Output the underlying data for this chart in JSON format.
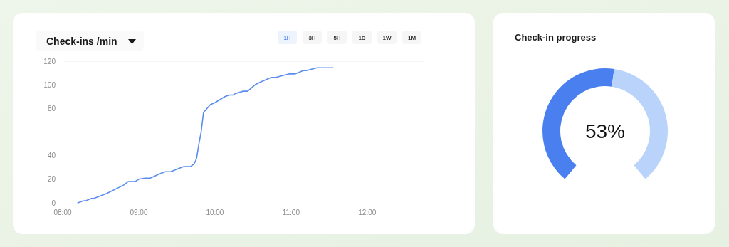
{
  "chart_data": [
    {
      "type": "line",
      "title": "Check-ins /min",
      "annotations": [
        "1H",
        "3H",
        "5H",
        "1D",
        "1W",
        "1M"
      ],
      "x": [
        8.2,
        8.27,
        8.31,
        8.38,
        8.41,
        8.58,
        8.8,
        8.86,
        8.95,
        9.0,
        9.08,
        9.15,
        9.29,
        9.35,
        9.42,
        9.54,
        9.59,
        9.68,
        9.73,
        9.76,
        9.79,
        9.82,
        9.85,
        9.94,
        10.0,
        10.13,
        10.19,
        10.24,
        10.27,
        10.37,
        10.43,
        10.47,
        10.54,
        10.61,
        10.74,
        10.8,
        10.97,
        11.05,
        11.16,
        11.2,
        11.34,
        11.55
      ],
      "series": [
        {
          "color": "#5b8def",
          "values": [
            0,
            1.7,
            2,
            3.7,
            3.7,
            8,
            15,
            18,
            18,
            20,
            21,
            21,
            25,
            26.4,
            26.4,
            29.5,
            30.7,
            30.7,
            33.3,
            38,
            50,
            60.5,
            76.6,
            83.2,
            84.9,
            90,
            91.4,
            91.4,
            92.6,
            94.6,
            94.6,
            96.8,
            100.6,
            102.7,
            106.3,
            106.3,
            109.2,
            109.2,
            112,
            112,
            114.4,
            114.4
          ]
        }
      ],
      "xlim": [
        8,
        12.75
      ],
      "xticks": [
        {
          "value": 8,
          "label": "08:00"
        },
        {
          "value": 9,
          "label": "09:00"
        },
        {
          "value": 10,
          "label": "10:00"
        },
        {
          "value": 11,
          "label": "11:00"
        },
        {
          "value": 12,
          "label": "12:00"
        }
      ],
      "ylim": [
        0,
        120
      ],
      "yticks": [
        0,
        20,
        40,
        80,
        100,
        120
      ],
      "marker": "none",
      "line_style": "solid"
    },
    {
      "type": "donut",
      "title": "Check-in progress",
      "categories": [
        null,
        null
      ],
      "values": [
        53,
        47
      ],
      "colors": [
        "#4a7ff0",
        "#b9d3fa"
      ],
      "annotations": [
        "53%"
      ]
    }
  ]
}
